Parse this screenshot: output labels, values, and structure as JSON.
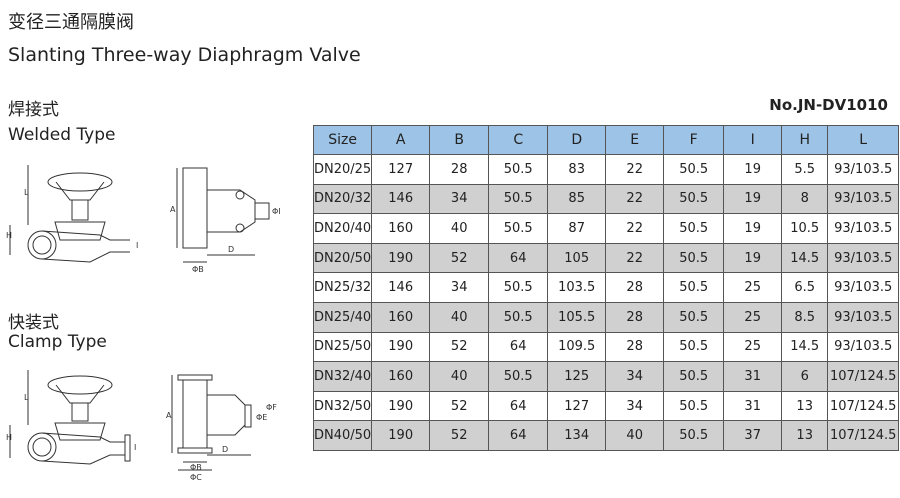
{
  "header": {
    "title_cn": "变径三通隔膜阀",
    "title_en": "Slanting Three-way Diaphragm Valve",
    "model": "No.JN-DV1010"
  },
  "sections": [
    {
      "title_cn": "焊接式",
      "title_en": "Welded Type"
    },
    {
      "title_cn": "快装式",
      "title_en": "Clamp Type"
    }
  ],
  "drawings": [
    {
      "labels": [
        "L",
        "H",
        "I"
      ]
    },
    {
      "labels": [
        "A",
        "ΦB",
        "D",
        "ΦI"
      ]
    },
    {
      "labels": [
        "L",
        "H",
        "I"
      ]
    },
    {
      "labels": [
        "A",
        "ΦB",
        "ΦC",
        "D",
        "ΦE",
        "ΦF"
      ]
    }
  ],
  "table": {
    "columns": [
      "Size",
      "A",
      "B",
      "C",
      "D",
      "E",
      "F",
      "I",
      "H",
      "L"
    ],
    "rows": [
      [
        "DN20/25",
        "127",
        "28",
        "50.5",
        "83",
        "22",
        "50.5",
        "19",
        "5.5",
        "93/103.5"
      ],
      [
        "DN20/32",
        "146",
        "34",
        "50.5",
        "85",
        "22",
        "50.5",
        "19",
        "8",
        "93/103.5"
      ],
      [
        "DN20/40",
        "160",
        "40",
        "50.5",
        "87",
        "22",
        "50.5",
        "19",
        "10.5",
        "93/103.5"
      ],
      [
        "DN20/50",
        "190",
        "52",
        "64",
        "105",
        "22",
        "50.5",
        "19",
        "14.5",
        "93/103.5"
      ],
      [
        "DN25/32",
        "146",
        "34",
        "50.5",
        "103.5",
        "28",
        "50.5",
        "25",
        "6.5",
        "93/103.5"
      ],
      [
        "DN25/40",
        "160",
        "40",
        "50.5",
        "105.5",
        "28",
        "50.5",
        "25",
        "8.5",
        "93/103.5"
      ],
      [
        "DN25/50",
        "190",
        "52",
        "64",
        "109.5",
        "28",
        "50.5",
        "25",
        "14.5",
        "93/103.5"
      ],
      [
        "DN32/40",
        "160",
        "40",
        "50.5",
        "125",
        "34",
        "50.5",
        "31",
        "6",
        "107/124.5"
      ],
      [
        "DN32/50",
        "190",
        "52",
        "64",
        "127",
        "34",
        "50.5",
        "31",
        "13",
        "107/124.5"
      ],
      [
        "DN40/50",
        "190",
        "52",
        "64",
        "134",
        "40",
        "50.5",
        "37",
        "13",
        "107/124.5"
      ]
    ]
  }
}
